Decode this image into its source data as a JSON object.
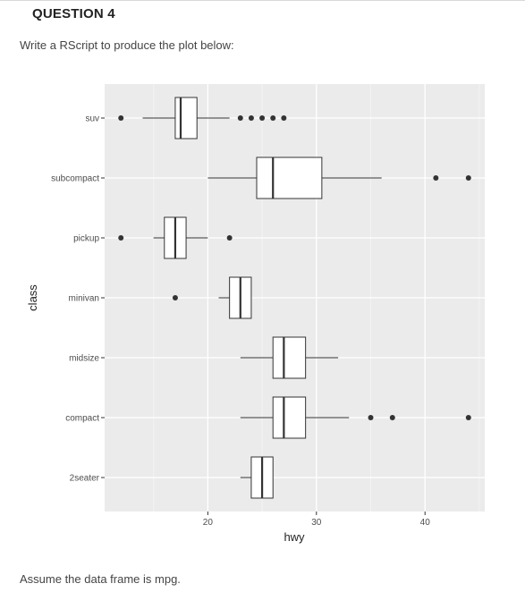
{
  "question_title": "QUESTION 4",
  "instruction": "Write a RScript to produce the plot below:",
  "footer_note": "Assume the data frame is mpg.",
  "chart_data": {
    "type": "boxplot",
    "orientation": "horizontal",
    "xlabel": "hwy",
    "ylabel": "class",
    "xlim": [
      10.5,
      45.5
    ],
    "x_ticks": [
      20,
      30,
      40
    ],
    "panel_background": "#ebebeb",
    "grid": true,
    "box_fill": "#ffffff",
    "line_color": "#333333",
    "categories": [
      "suv",
      "subcompact",
      "pickup",
      "minivan",
      "midsize",
      "compact",
      "2seater"
    ],
    "boxes": [
      {
        "category": "suv",
        "whisker_low": 14,
        "q1": 17,
        "median": 17.5,
        "q3": 19,
        "whisker_high": 22,
        "outliers": [
          12,
          23,
          24,
          25,
          26,
          27
        ]
      },
      {
        "category": "subcompact",
        "whisker_low": 20,
        "q1": 24.5,
        "median": 26,
        "q3": 30.5,
        "whisker_high": 36,
        "outliers": [
          41,
          44
        ]
      },
      {
        "category": "pickup",
        "whisker_low": 15,
        "q1": 16,
        "median": 17,
        "q3": 18,
        "whisker_high": 20,
        "outliers": [
          12,
          22
        ]
      },
      {
        "category": "minivan",
        "whisker_low": 21,
        "q1": 22,
        "median": 23,
        "q3": 24,
        "whisker_high": 24,
        "outliers": [
          17
        ]
      },
      {
        "category": "midsize",
        "whisker_low": 23,
        "q1": 26,
        "median": 27,
        "q3": 29,
        "whisker_high": 32,
        "outliers": []
      },
      {
        "category": "compact",
        "whisker_low": 23,
        "q1": 26,
        "median": 27,
        "q3": 29,
        "whisker_high": 33,
        "outliers": [
          35,
          37,
          44
        ]
      },
      {
        "category": "2seater",
        "whisker_low": 23,
        "q1": 24,
        "median": 25,
        "q3": 26,
        "whisker_high": 26,
        "outliers": []
      }
    ]
  }
}
